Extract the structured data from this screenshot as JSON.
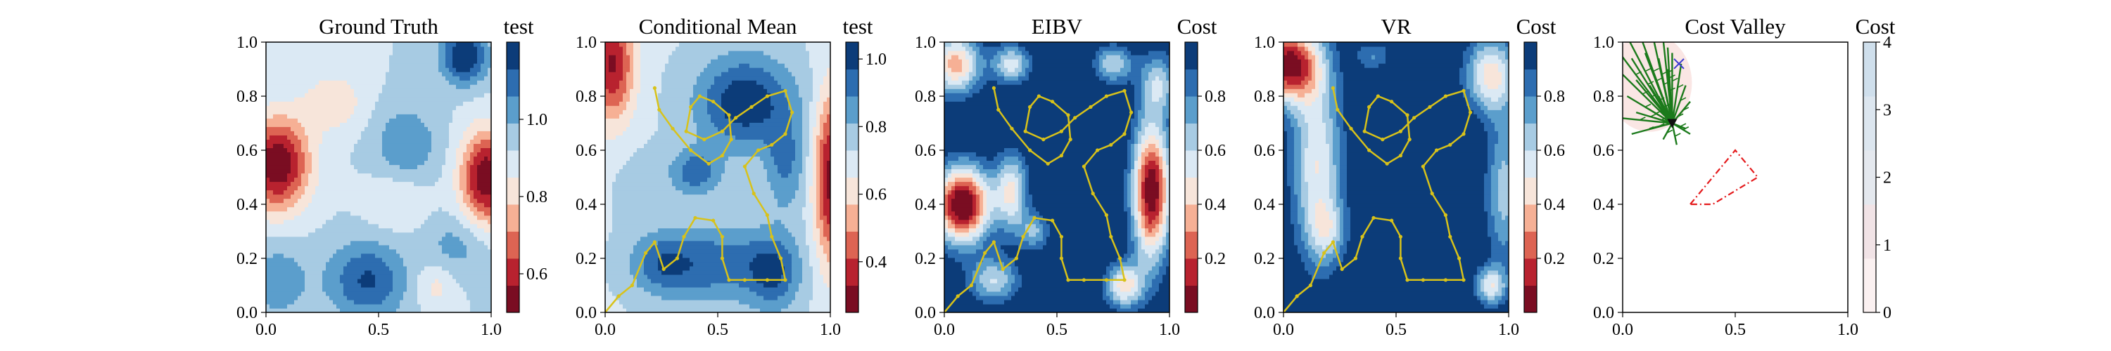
{
  "chart_data": [
    {
      "type": "heatmap",
      "title": "Ground Truth",
      "colorbar_label": "test",
      "xlim": [
        0,
        1
      ],
      "ylim": [
        0,
        1
      ],
      "xticks": [
        "0.0",
        "0.5",
        "1.0"
      ],
      "yticks": [
        "0.0",
        "0.2",
        "0.4",
        "0.6",
        "0.8",
        "1.0"
      ],
      "colorbar_range": [
        0.5,
        1.2
      ],
      "colorbar_ticks": [
        "0.6",
        "0.8",
        "1.0"
      ],
      "colorbar_tick_values": [
        0.6,
        0.8,
        1.0
      ],
      "colormap": "RdBu",
      "field": {
        "base": 0.92,
        "features": [
          {
            "x": 0.05,
            "y": 0.55,
            "sx": 0.1,
            "sy": 0.12,
            "a": -0.42
          },
          {
            "x": 0.98,
            "y": 0.5,
            "sx": 0.08,
            "sy": 0.12,
            "a": -0.42
          },
          {
            "x": 0.3,
            "y": 0.78,
            "sx": 0.1,
            "sy": 0.08,
            "a": -0.12
          },
          {
            "x": 0.88,
            "y": 0.95,
            "sx": 0.07,
            "sy": 0.07,
            "a": 0.3
          },
          {
            "x": 0.45,
            "y": 0.12,
            "sx": 0.12,
            "sy": 0.1,
            "a": 0.22
          },
          {
            "x": 0.62,
            "y": 0.62,
            "sx": 0.1,
            "sy": 0.1,
            "a": 0.14
          },
          {
            "x": 0.85,
            "y": 0.25,
            "sx": 0.1,
            "sy": 0.08,
            "a": 0.1
          },
          {
            "x": 0.05,
            "y": 0.12,
            "sx": 0.1,
            "sy": 0.1,
            "a": 0.12
          },
          {
            "x": 0.58,
            "y": 0.42,
            "sx": 0.1,
            "sy": 0.08,
            "a": -0.08
          },
          {
            "x": 0.75,
            "y": 0.1,
            "sx": 0.06,
            "sy": 0.06,
            "a": -0.1
          }
        ]
      },
      "path": []
    },
    {
      "type": "heatmap",
      "title": "Conditional Mean",
      "colorbar_label": "test",
      "xlim": [
        0,
        1
      ],
      "ylim": [
        0,
        1
      ],
      "xticks": [
        "0.0",
        "0.5",
        "1.0"
      ],
      "yticks": [
        "0.0",
        "0.2",
        "0.4",
        "0.6",
        "0.8",
        "1.0"
      ],
      "colorbar_range": [
        0.25,
        1.05
      ],
      "colorbar_ticks": [
        "0.4",
        "0.6",
        "0.8",
        "1.0"
      ],
      "colorbar_tick_values": [
        0.4,
        0.6,
        0.8,
        1.0
      ],
      "colormap": "RdBu",
      "field": {
        "base": 0.72,
        "features": [
          {
            "x": 0.03,
            "y": 0.92,
            "sx": 0.07,
            "sy": 0.15,
            "a": -0.4
          },
          {
            "x": 1.0,
            "y": 0.5,
            "sx": 0.05,
            "sy": 0.22,
            "a": -0.42
          },
          {
            "x": 0.62,
            "y": 0.78,
            "sx": 0.15,
            "sy": 0.12,
            "a": 0.32
          },
          {
            "x": 0.4,
            "y": 0.52,
            "sx": 0.08,
            "sy": 0.06,
            "a": 0.22
          },
          {
            "x": 0.8,
            "y": 0.55,
            "sx": 0.06,
            "sy": 0.12,
            "a": 0.18
          },
          {
            "x": 0.5,
            "y": 0.18,
            "sx": 0.18,
            "sy": 0.1,
            "a": 0.22
          },
          {
            "x": 0.75,
            "y": 0.15,
            "sx": 0.08,
            "sy": 0.1,
            "a": 0.22
          },
          {
            "x": 0.25,
            "y": 0.18,
            "sx": 0.1,
            "sy": 0.08,
            "a": 0.18
          },
          {
            "x": 0.15,
            "y": 0.48,
            "sx": 0.08,
            "sy": 0.1,
            "a": 0.04
          }
        ]
      },
      "path": [
        [
          0.22,
          0.83
        ],
        [
          0.24,
          0.75
        ],
        [
          0.3,
          0.68
        ],
        [
          0.38,
          0.6
        ],
        [
          0.46,
          0.55
        ],
        [
          0.52,
          0.58
        ],
        [
          0.56,
          0.64
        ],
        [
          0.55,
          0.73
        ],
        [
          0.48,
          0.78
        ],
        [
          0.42,
          0.8
        ],
        [
          0.38,
          0.76
        ],
        [
          0.36,
          0.67
        ],
        [
          0.44,
          0.64
        ],
        [
          0.52,
          0.67
        ],
        [
          0.58,
          0.72
        ],
        [
          0.65,
          0.76
        ],
        [
          0.72,
          0.8
        ],
        [
          0.8,
          0.82
        ],
        [
          0.83,
          0.74
        ],
        [
          0.8,
          0.66
        ],
        [
          0.74,
          0.62
        ],
        [
          0.68,
          0.6
        ],
        [
          0.62,
          0.54
        ],
        [
          0.66,
          0.44
        ],
        [
          0.72,
          0.36
        ],
        [
          0.74,
          0.28
        ],
        [
          0.78,
          0.2
        ],
        [
          0.8,
          0.12
        ],
        [
          0.72,
          0.12
        ],
        [
          0.62,
          0.12
        ],
        [
          0.55,
          0.12
        ],
        [
          0.52,
          0.2
        ],
        [
          0.52,
          0.28
        ],
        [
          0.48,
          0.34
        ],
        [
          0.4,
          0.35
        ],
        [
          0.35,
          0.28
        ],
        [
          0.32,
          0.2
        ],
        [
          0.26,
          0.16
        ],
        [
          0.22,
          0.26
        ],
        [
          0.18,
          0.22
        ],
        [
          0.12,
          0.1
        ],
        [
          0.06,
          0.06
        ],
        [
          0.0,
          0.0
        ]
      ]
    },
    {
      "type": "heatmap",
      "title": "EIBV",
      "colorbar_label": "Cost",
      "xlim": [
        0,
        1
      ],
      "ylim": [
        0,
        1
      ],
      "xticks": [
        "0.0",
        "0.5",
        "1.0"
      ],
      "yticks": [
        "0.0",
        "0.2",
        "0.4",
        "0.6",
        "0.8",
        "1.0"
      ],
      "colorbar_range": [
        0.0,
        1.0
      ],
      "colorbar_ticks": [
        "0.2",
        "0.4",
        "0.6",
        "0.8"
      ],
      "colorbar_tick_values": [
        0.2,
        0.4,
        0.6,
        0.8
      ],
      "colormap": "RdBu",
      "field": {
        "base": 1.05,
        "features": [
          {
            "x": 0.05,
            "y": 0.92,
            "sx": 0.08,
            "sy": 0.08,
            "a": -0.7
          },
          {
            "x": 0.3,
            "y": 0.92,
            "sx": 0.06,
            "sy": 0.05,
            "a": -0.5
          },
          {
            "x": 0.08,
            "y": 0.4,
            "sx": 0.09,
            "sy": 0.1,
            "a": -1.1
          },
          {
            "x": 0.3,
            "y": 0.45,
            "sx": 0.05,
            "sy": 0.1,
            "a": -0.55
          },
          {
            "x": 0.22,
            "y": 0.12,
            "sx": 0.08,
            "sy": 0.06,
            "a": -0.45
          },
          {
            "x": 0.92,
            "y": 0.45,
            "sx": 0.06,
            "sy": 0.18,
            "a": -1.05
          },
          {
            "x": 0.8,
            "y": 0.1,
            "sx": 0.06,
            "sy": 0.06,
            "a": -0.6
          },
          {
            "x": 0.75,
            "y": 0.92,
            "sx": 0.06,
            "sy": 0.05,
            "a": -0.45
          },
          {
            "x": 0.95,
            "y": 0.85,
            "sx": 0.06,
            "sy": 0.08,
            "a": -0.4
          },
          {
            "x": 0.4,
            "y": 0.3,
            "sx": 0.05,
            "sy": 0.05,
            "a": -0.35
          }
        ]
      },
      "path": [
        [
          0.22,
          0.83
        ],
        [
          0.24,
          0.75
        ],
        [
          0.3,
          0.68
        ],
        [
          0.38,
          0.6
        ],
        [
          0.46,
          0.55
        ],
        [
          0.52,
          0.58
        ],
        [
          0.56,
          0.64
        ],
        [
          0.55,
          0.73
        ],
        [
          0.48,
          0.78
        ],
        [
          0.42,
          0.8
        ],
        [
          0.38,
          0.76
        ],
        [
          0.36,
          0.67
        ],
        [
          0.44,
          0.64
        ],
        [
          0.52,
          0.67
        ],
        [
          0.58,
          0.72
        ],
        [
          0.65,
          0.76
        ],
        [
          0.72,
          0.8
        ],
        [
          0.8,
          0.82
        ],
        [
          0.83,
          0.74
        ],
        [
          0.8,
          0.66
        ],
        [
          0.74,
          0.62
        ],
        [
          0.68,
          0.6
        ],
        [
          0.62,
          0.54
        ],
        [
          0.66,
          0.44
        ],
        [
          0.72,
          0.36
        ],
        [
          0.74,
          0.28
        ],
        [
          0.78,
          0.2
        ],
        [
          0.8,
          0.12
        ],
        [
          0.72,
          0.12
        ],
        [
          0.62,
          0.12
        ],
        [
          0.55,
          0.12
        ],
        [
          0.52,
          0.2
        ],
        [
          0.52,
          0.28
        ],
        [
          0.48,
          0.34
        ],
        [
          0.4,
          0.35
        ],
        [
          0.35,
          0.28
        ],
        [
          0.32,
          0.2
        ],
        [
          0.26,
          0.16
        ],
        [
          0.22,
          0.26
        ],
        [
          0.18,
          0.22
        ],
        [
          0.12,
          0.1
        ],
        [
          0.06,
          0.06
        ],
        [
          0.0,
          0.0
        ]
      ]
    },
    {
      "type": "heatmap",
      "title": "VR",
      "colorbar_label": "Cost",
      "xlim": [
        0,
        1
      ],
      "ylim": [
        0,
        1
      ],
      "xticks": [
        "0.0",
        "0.5",
        "1.0"
      ],
      "yticks": [
        "0.0",
        "0.2",
        "0.4",
        "0.6",
        "0.8",
        "1.0"
      ],
      "colorbar_range": [
        0.0,
        1.0
      ],
      "colorbar_ticks": [
        "0.2",
        "0.4",
        "0.6",
        "0.8"
      ],
      "colorbar_tick_values": [
        0.2,
        0.4,
        0.6,
        0.8
      ],
      "colormap": "RdBu",
      "field": {
        "base": 1.05,
        "features": [
          {
            "x": 0.02,
            "y": 0.92,
            "sx": 0.1,
            "sy": 0.1,
            "a": -1.0
          },
          {
            "x": 0.15,
            "y": 0.55,
            "sx": 0.08,
            "sy": 0.25,
            "a": -0.55
          },
          {
            "x": 0.92,
            "y": 0.88,
            "sx": 0.08,
            "sy": 0.1,
            "a": -0.6
          },
          {
            "x": 0.98,
            "y": 0.45,
            "sx": 0.06,
            "sy": 0.2,
            "a": -0.4
          },
          {
            "x": 0.92,
            "y": 0.1,
            "sx": 0.05,
            "sy": 0.05,
            "a": -0.5
          },
          {
            "x": 0.2,
            "y": 0.3,
            "sx": 0.06,
            "sy": 0.08,
            "a": -0.3
          },
          {
            "x": 0.4,
            "y": 0.95,
            "sx": 0.06,
            "sy": 0.04,
            "a": -0.25
          }
        ]
      },
      "path": [
        [
          0.22,
          0.83
        ],
        [
          0.24,
          0.75
        ],
        [
          0.3,
          0.68
        ],
        [
          0.38,
          0.6
        ],
        [
          0.46,
          0.55
        ],
        [
          0.52,
          0.58
        ],
        [
          0.56,
          0.64
        ],
        [
          0.55,
          0.73
        ],
        [
          0.48,
          0.78
        ],
        [
          0.42,
          0.8
        ],
        [
          0.38,
          0.76
        ],
        [
          0.36,
          0.67
        ],
        [
          0.44,
          0.64
        ],
        [
          0.52,
          0.67
        ],
        [
          0.58,
          0.72
        ],
        [
          0.65,
          0.76
        ],
        [
          0.72,
          0.8
        ],
        [
          0.8,
          0.82
        ],
        [
          0.83,
          0.74
        ],
        [
          0.8,
          0.66
        ],
        [
          0.74,
          0.62
        ],
        [
          0.68,
          0.6
        ],
        [
          0.62,
          0.54
        ],
        [
          0.66,
          0.44
        ],
        [
          0.72,
          0.36
        ],
        [
          0.74,
          0.28
        ],
        [
          0.78,
          0.2
        ],
        [
          0.8,
          0.12
        ],
        [
          0.72,
          0.12
        ],
        [
          0.62,
          0.12
        ],
        [
          0.55,
          0.12
        ],
        [
          0.52,
          0.2
        ],
        [
          0.52,
          0.28
        ],
        [
          0.48,
          0.34
        ],
        [
          0.4,
          0.35
        ],
        [
          0.35,
          0.28
        ],
        [
          0.32,
          0.2
        ],
        [
          0.26,
          0.16
        ],
        [
          0.22,
          0.26
        ],
        [
          0.18,
          0.22
        ],
        [
          0.12,
          0.1
        ],
        [
          0.06,
          0.06
        ],
        [
          0.0,
          0.0
        ]
      ]
    },
    {
      "type": "scatter",
      "title": "Cost Valley",
      "colorbar_label": "Cost",
      "xlim": [
        0,
        1
      ],
      "ylim": [
        0,
        1
      ],
      "xticks": [
        "0.0",
        "0.5",
        "1.0"
      ],
      "yticks": [
        "0.0",
        "0.2",
        "0.4",
        "0.6",
        "0.8",
        "1.0"
      ],
      "colorbar_range": [
        0,
        4
      ],
      "colorbar_ticks": [
        "0",
        "1",
        "2",
        "3",
        "4"
      ],
      "colorbar_tick_values": [
        0,
        1,
        2,
        3,
        4
      ],
      "colormap": "RdBu",
      "current_location": [
        0.22,
        0.7
      ],
      "target_location": [
        0.25,
        0.92
      ],
      "candidate_lines": [
        [
          -0.05,
          1.0
        ],
        [
          0.02,
          1.02
        ],
        [
          0.08,
          1.02
        ],
        [
          0.14,
          1.0
        ],
        [
          0.2,
          0.98
        ],
        [
          0.26,
          0.92
        ],
        [
          0.28,
          0.84
        ],
        [
          0.3,
          0.78
        ],
        [
          0.28,
          0.68
        ],
        [
          0.24,
          0.62
        ],
        [
          0.18,
          0.64
        ],
        [
          0.12,
          0.68
        ],
        [
          0.06,
          0.74
        ],
        [
          0.02,
          0.8
        ],
        [
          0.0,
          0.88
        ],
        [
          0.04,
          0.94
        ],
        [
          0.1,
          0.96
        ],
        [
          0.16,
          0.94
        ],
        [
          0.2,
          0.9
        ],
        [
          0.12,
          0.84
        ],
        [
          0.06,
          0.86
        ],
        [
          0.16,
          0.8
        ],
        [
          0.1,
          0.76
        ],
        [
          0.22,
          0.96
        ],
        [
          0.26,
          0.74
        ],
        [
          0.14,
          0.72
        ],
        [
          0.04,
          0.66
        ],
        [
          -0.02,
          0.72
        ],
        [
          0.3,
          0.66
        ],
        [
          0.18,
          1.01
        ]
      ],
      "polygon": [
        [
          0.3,
          0.4
        ],
        [
          0.5,
          0.6
        ],
        [
          0.6,
          0.5
        ],
        [
          0.4,
          0.4
        ],
        [
          0.3,
          0.4
        ]
      ],
      "polygon_color": "#e41a1c",
      "line_color": "#1b7a1b",
      "current_color": "#111111",
      "target_color": "#3a3ad0"
    }
  ]
}
